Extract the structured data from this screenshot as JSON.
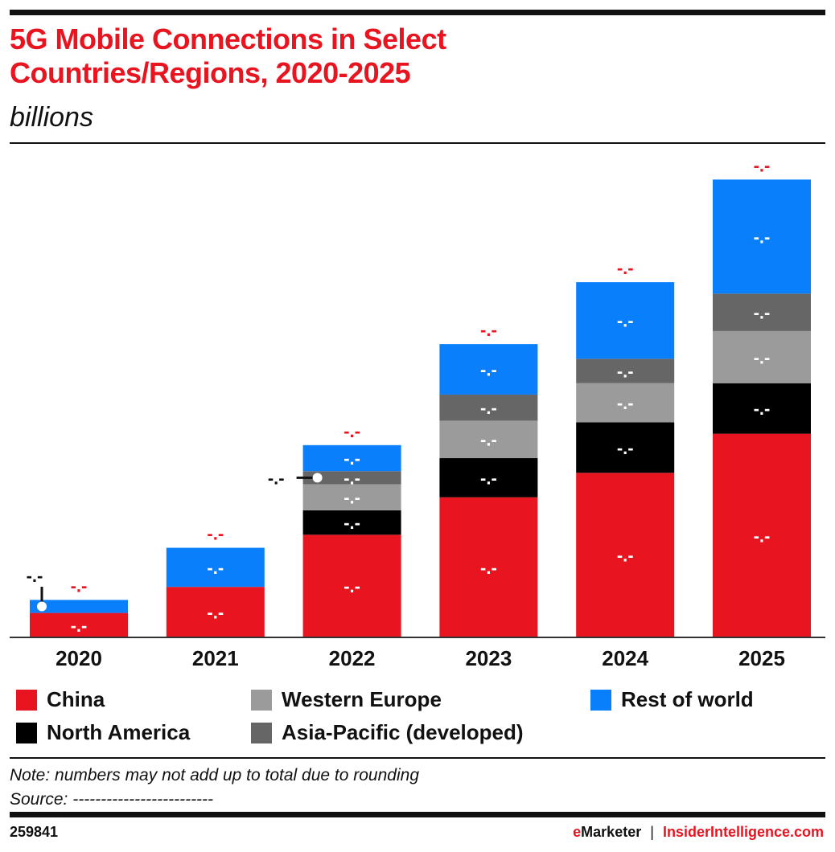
{
  "title_line1": "5G Mobile Connections in Select",
  "title_line2": "Countries/Regions, 2020-2025",
  "subtitle": "billions",
  "note": "Note: numbers may not add up to total due to rounding",
  "source": "Source: -------------------------",
  "chart_id": "259841",
  "brand_emarketer": "eMarketer",
  "brand_separator": "|",
  "brand_site": "InsiderIntelligence.com",
  "colors": {
    "China": "#e8141f",
    "North America": "#000000",
    "Western Europe": "#9b9b9b",
    "Asia-Pacific (developed)": "#666666",
    "Rest of world": "#0a7ffb",
    "total_label": "#e8141f"
  },
  "chart_data": {
    "type": "bar",
    "stacked": true,
    "title": "5G Mobile Connections in Select Countries/Regions, 2020-2025",
    "subtitle": "billions",
    "categories": [
      "2020",
      "2021",
      "2022",
      "2023",
      "2024",
      "2025"
    ],
    "ylim": [
      0,
      2.95
    ],
    "grid": false,
    "legend_position": "bottom",
    "series": [
      {
        "name": "China",
        "values": [
          0.15,
          0.31,
          0.63,
          0.86,
          1.01,
          1.25
        ],
        "labels": [
          "-.-",
          "-.-",
          "-.-",
          "-.-",
          "-.-",
          "-.-"
        ]
      },
      {
        "name": "North America",
        "values": [
          0,
          0,
          0.15,
          0.24,
          0.31,
          0.31
        ],
        "labels": [
          "",
          "",
          "-.-",
          "-.-",
          "-.-",
          "-.-"
        ]
      },
      {
        "name": "Western Europe",
        "values": [
          0,
          0,
          0.16,
          0.23,
          0.24,
          0.32
        ],
        "labels": [
          "",
          "",
          "-.-",
          "-.-",
          "-.-",
          "-.-"
        ]
      },
      {
        "name": "Asia-Pacific (developed)",
        "values": [
          0,
          0,
          0.08,
          0.16,
          0.15,
          0.23
        ],
        "labels": [
          "",
          "",
          "-.-",
          "-.-",
          "-.-",
          "-.-"
        ]
      },
      {
        "name": "Rest of world",
        "values": [
          0.08,
          0.24,
          0.16,
          0.31,
          0.47,
          0.7
        ],
        "labels": [
          "",
          "-.-",
          "-.-",
          "-.-",
          "-.-",
          "-.-"
        ]
      }
    ],
    "total_labels": [
      "-.-",
      "-.-",
      "-.-",
      "-.-",
      "-.-",
      "-.-"
    ],
    "callouts": [
      {
        "category": "2020",
        "series": "Rest of world",
        "label": "-.-"
      },
      {
        "category": "2022",
        "series": "Asia-Pacific (developed)",
        "label": "-.-"
      }
    ]
  }
}
